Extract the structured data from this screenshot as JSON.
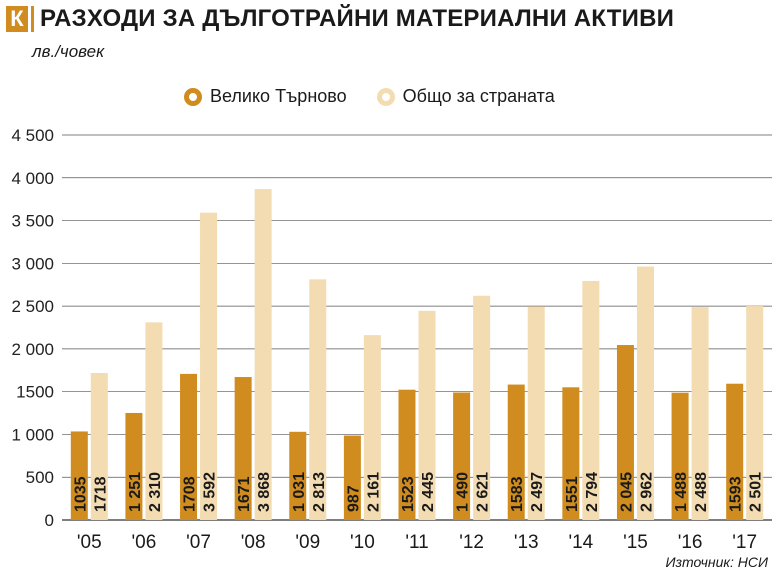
{
  "header": {
    "logo_letter": "К",
    "title": "РАЗХОДИ ЗА ДЪЛГОТРАЙНИ МАТЕРИАЛНИ АКТИВИ"
  },
  "unit_label": "лв./човек",
  "source": "Източник: НСИ",
  "colors": {
    "series1": "#d08c1e",
    "series2": "#f3dcb2",
    "accent": "#d08c1e"
  },
  "chart_data": {
    "type": "bar",
    "categories": [
      "'05",
      "'06",
      "'07",
      "'08",
      "'09",
      "'10",
      "'11",
      "'12",
      "'13",
      "'14",
      "'15",
      "'16",
      "'17"
    ],
    "series": [
      {
        "name": "Велико Търново",
        "values": [
          1035,
          1251,
          1708,
          1671,
          1031,
          987,
          1523,
          1490,
          1583,
          1551,
          2045,
          1488,
          1593
        ]
      },
      {
        "name": "Общо за страната",
        "values": [
          1718,
          2310,
          3592,
          3868,
          2813,
          2161,
          2445,
          2621,
          2497,
          2794,
          2962,
          2488,
          2501
        ]
      }
    ],
    "ylim": [
      0,
      4500
    ],
    "yticks": [
      0,
      500,
      1000,
      1500,
      2000,
      2500,
      3000,
      3500,
      4000,
      4500
    ],
    "ytick_labels": [
      "0",
      "500",
      "1 000",
      "1500",
      "2 000",
      "2 500",
      "3 000",
      "3 500",
      "4 000",
      "4 500"
    ],
    "data_labels": [
      [
        "1035",
        "1 251",
        "1708",
        "1671",
        "1 031",
        "987",
        "1523",
        "1 490",
        "1583",
        "1551",
        "2 045",
        "1 488",
        "1593"
      ],
      [
        "1718",
        "2 310",
        "3 592",
        "3 868",
        "2 813",
        "2 161",
        "2 445",
        "2 621",
        "2 497",
        "2 794",
        "2 962",
        "2 488",
        "2 501"
      ]
    ],
    "grid": true,
    "legend_position": "top"
  }
}
